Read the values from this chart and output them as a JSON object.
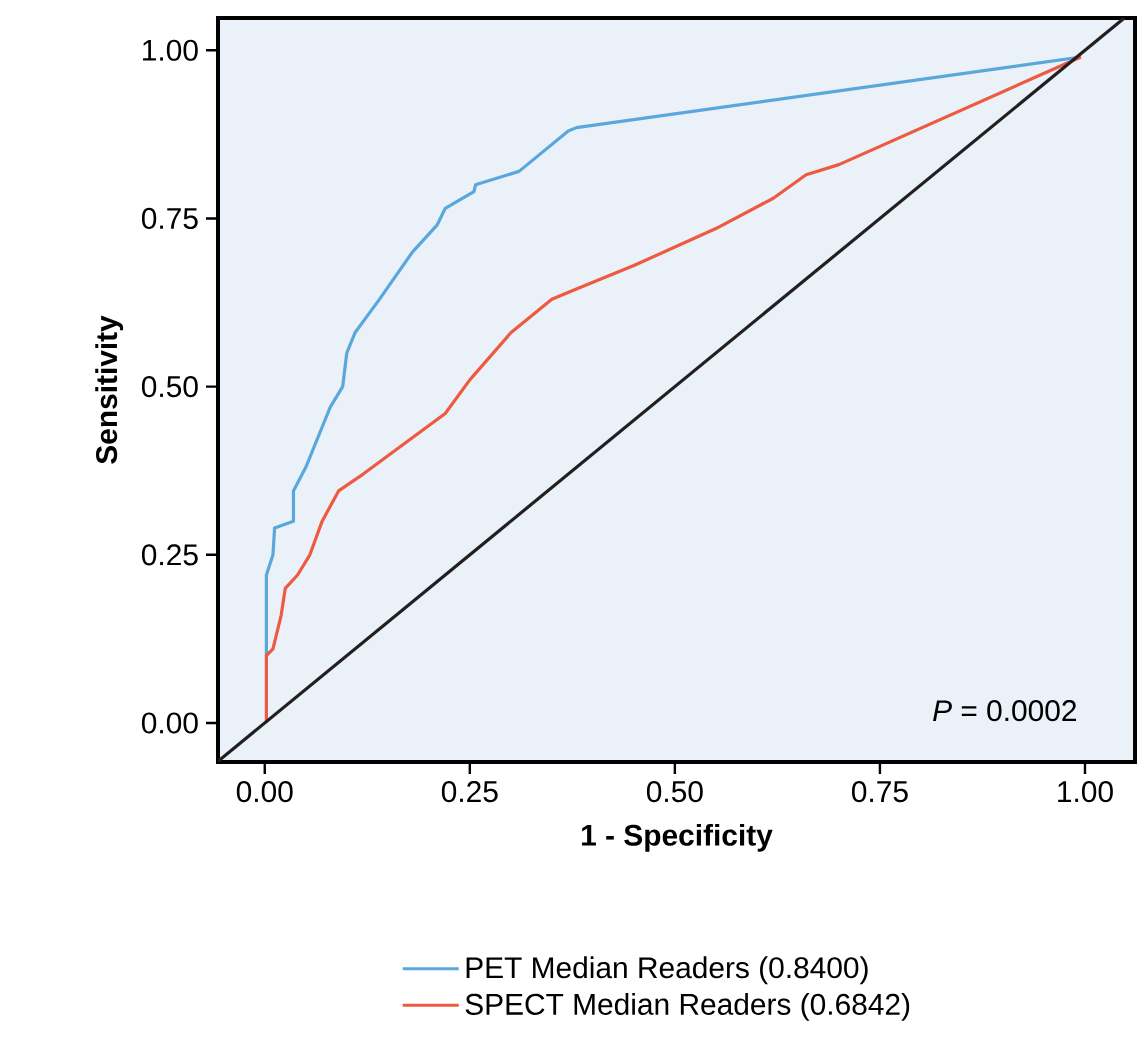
{
  "chart_data": {
    "type": "line",
    "xlabel": "1 - Specificity",
    "ylabel": "Sensitivity",
    "xlim": [
      -0.057,
      1.061
    ],
    "ylim": [
      -0.058,
      1.048
    ],
    "xticks": [
      {
        "value": 0,
        "label": "0.00"
      },
      {
        "value": 0.25,
        "label": "0.25"
      },
      {
        "value": 0.5,
        "label": "0.50"
      },
      {
        "value": 0.75,
        "label": "0.75"
      },
      {
        "value": 1,
        "label": "1.00"
      }
    ],
    "yticks": [
      {
        "value": 0,
        "label": "0.00"
      },
      {
        "value": 0.25,
        "label": "0.25"
      },
      {
        "value": 0.5,
        "label": "0.50"
      },
      {
        "value": 0.75,
        "label": "0.75"
      },
      {
        "value": 1,
        "label": "1.00"
      }
    ],
    "legend": "bottom",
    "annotations": [
      "*P* = 0.0002"
    ],
    "series": [
      {
        "name": "PET Median Readers (0.8400)",
        "color": "#5aa7dc",
        "x": [
          0.002,
          0.002,
          0.01,
          0.012,
          0.035,
          0.035,
          0.05,
          0.07,
          0.08,
          0.095,
          0.1,
          0.11,
          0.14,
          0.18,
          0.21,
          0.22,
          0.255,
          0.257,
          0.31,
          0.34,
          0.37,
          0.38,
          0.995
        ],
        "values": [
          0.1,
          0.22,
          0.25,
          0.29,
          0.3,
          0.345,
          0.38,
          0.44,
          0.47,
          0.5,
          0.55,
          0.58,
          0.63,
          0.7,
          0.74,
          0.765,
          0.79,
          0.8,
          0.82,
          0.85,
          0.88,
          0.885,
          0.99
        ]
      },
      {
        "name": "SPECT Median Readers (0.6842)",
        "color": "#ee5a3f",
        "x": [
          0.002,
          0.002,
          0.01,
          0.02,
          0.025,
          0.04,
          0.055,
          0.07,
          0.09,
          0.12,
          0.22,
          0.25,
          0.3,
          0.35,
          0.38,
          0.45,
          0.55,
          0.62,
          0.66,
          0.7,
          0.995
        ],
        "values": [
          0,
          0.1,
          0.11,
          0.16,
          0.2,
          0.22,
          0.25,
          0.3,
          0.345,
          0.37,
          0.46,
          0.51,
          0.58,
          0.63,
          0.645,
          0.68,
          0.735,
          0.78,
          0.815,
          0.83,
          0.99
        ]
      },
      {
        "color": "#231f20",
        "x": [
          -0.057,
          1.048
        ],
        "values": [
          -0.057,
          1.048
        ]
      }
    ]
  }
}
